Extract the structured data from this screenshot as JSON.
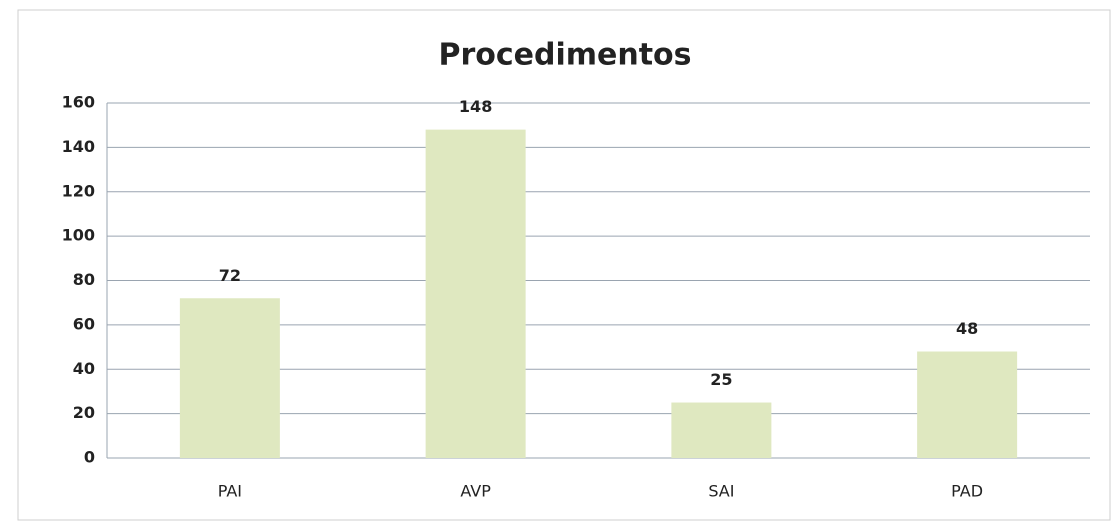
{
  "chart_data": {
    "type": "bar",
    "title": "Procedimentos",
    "categories": [
      "PAI",
      "AVP",
      "SAI",
      "PAD"
    ],
    "values": [
      72,
      148,
      25,
      48
    ],
    "color": "#dfe8c0",
    "ylim": [
      0,
      160
    ],
    "yticks": [
      0,
      20,
      40,
      60,
      80,
      100,
      120,
      140,
      160
    ],
    "grid": true
  }
}
